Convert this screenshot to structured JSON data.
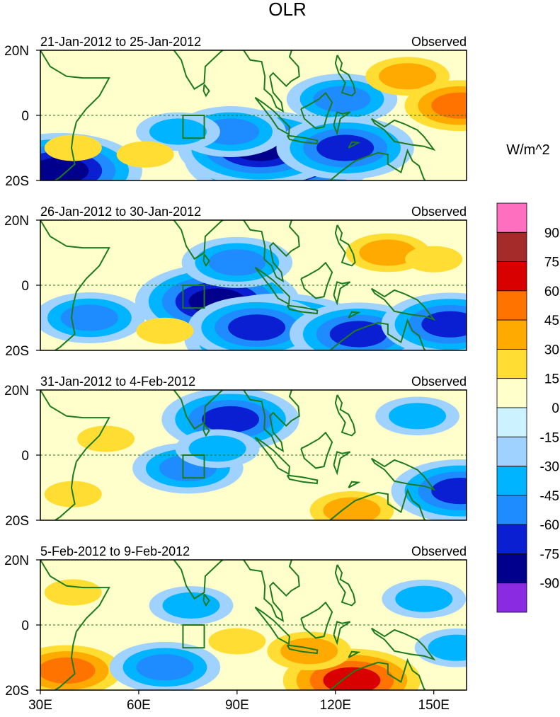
{
  "chart_data": {
    "type": "heatmap",
    "title": "OLR",
    "colorbar": {
      "unit": "W/m^2",
      "levels": [
        "90",
        "75",
        "60",
        "45",
        "30",
        "15",
        "0",
        "-15",
        "-30",
        "-45",
        "-60",
        "-75",
        "-90"
      ],
      "colors": [
        "#ff6fbf",
        "#a52a2a",
        "#d80000",
        "#ff7400",
        "#ffaa00",
        "#ffdd33",
        "#ffffcc",
        "#ccf2ff",
        "#a0d2ff",
        "#00b4ff",
        "#1e8cff",
        "#0a1ed2",
        "#00008c",
        "#8a2be2"
      ]
    },
    "xaxis": {
      "ticks": [
        "30E",
        "60E",
        "90E",
        "120E",
        "150E"
      ],
      "range_deg": [
        30,
        160
      ]
    },
    "yaxis": {
      "ticks": [
        "20N",
        "0",
        "20S"
      ],
      "range_deg": [
        -20,
        20
      ]
    },
    "panels": [
      {
        "date_range": "21-Jan-2012 to 25-Jan-2012",
        "label": "Observed",
        "anomaly_features": [
          {
            "lon": 103,
            "lat": -13,
            "value": -95
          },
          {
            "lon": 97,
            "lat": -10,
            "value": -75
          },
          {
            "lon": 88,
            "lat": -5,
            "value": -55
          },
          {
            "lon": 72,
            "lat": -5,
            "value": -40
          },
          {
            "lon": 122,
            "lat": 5,
            "value": -45
          },
          {
            "lon": 123,
            "lat": -10,
            "value": -60
          },
          {
            "lon": 36,
            "lat": -17,
            "value": -80
          },
          {
            "lon": 62,
            "lat": -12,
            "value": 20
          },
          {
            "lon": 142,
            "lat": 12,
            "value": 30
          },
          {
            "lon": 158,
            "lat": 3,
            "value": 50
          },
          {
            "lon": 40,
            "lat": -10,
            "value": 25
          }
        ]
      },
      {
        "date_range": "26-Jan-2012 to 30-Jan-2012",
        "label": "Observed",
        "anomaly_features": [
          {
            "lon": 84,
            "lat": -5,
            "value": -75
          },
          {
            "lon": 103,
            "lat": -16,
            "value": -95
          },
          {
            "lon": 96,
            "lat": -13,
            "value": -70
          },
          {
            "lon": 90,
            "lat": 7,
            "value": -50
          },
          {
            "lon": 45,
            "lat": -10,
            "value": -50
          },
          {
            "lon": 127,
            "lat": -15,
            "value": -65
          },
          {
            "lon": 155,
            "lat": -12,
            "value": -70
          },
          {
            "lon": 68,
            "lat": -14,
            "value": 25
          },
          {
            "lon": 136,
            "lat": 10,
            "value": 30
          },
          {
            "lon": 150,
            "lat": 8,
            "value": 25
          }
        ]
      },
      {
        "date_range": "31-Jan-2012 to 4-Feb-2012",
        "label": "Observed",
        "anomaly_features": [
          {
            "lon": 88,
            "lat": 11,
            "value": -60
          },
          {
            "lon": 75,
            "lat": -4,
            "value": -50
          },
          {
            "lon": 84,
            "lat": 2,
            "value": -30
          },
          {
            "lon": 158,
            "lat": -11,
            "value": -60
          },
          {
            "lon": 125,
            "lat": -17,
            "value": 40
          },
          {
            "lon": 40,
            "lat": -12,
            "value": 25
          },
          {
            "lon": 50,
            "lat": 5,
            "value": 20
          },
          {
            "lon": 145,
            "lat": 12,
            "value": -35
          }
        ]
      },
      {
        "date_range": "5-Feb-2012 to 9-Feb-2012",
        "label": "Observed",
        "anomaly_features": [
          {
            "lon": 38,
            "lat": -14,
            "value": 50
          },
          {
            "lon": 125,
            "lat": -17,
            "value": 60
          },
          {
            "lon": 112,
            "lat": -8,
            "value": 35
          },
          {
            "lon": 90,
            "lat": -5,
            "value": 25
          },
          {
            "lon": 68,
            "lat": -13,
            "value": -50
          },
          {
            "lon": 76,
            "lat": 6,
            "value": -40
          },
          {
            "lon": 147,
            "lat": 8,
            "value": -40
          },
          {
            "lon": 157,
            "lat": -7,
            "value": -40
          },
          {
            "lon": 40,
            "lat": 10,
            "value": 15
          }
        ]
      }
    ]
  }
}
